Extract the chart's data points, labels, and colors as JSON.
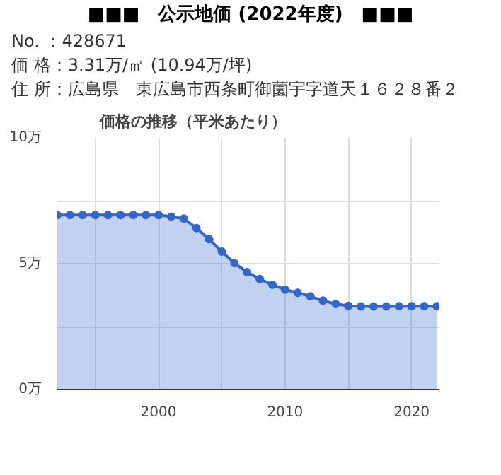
{
  "chart_data": {
    "type": "area",
    "title": "■■■　公示地価 (2022年度)　■■■",
    "subtitle": "価格の推移（平米あたり）",
    "annotations": [
      "No. ：428671",
      "価 格：3.31万/㎡ (10.94万/坪)",
      "住 所：広島県　東広島市西条町御薗宇字道天１６２８番２"
    ],
    "x": [
      1992,
      1993,
      1994,
      1995,
      1996,
      1997,
      1998,
      1999,
      2000,
      2001,
      2002,
      2003,
      2004,
      2005,
      2006,
      2007,
      2008,
      2009,
      2010,
      2011,
      2012,
      2013,
      2014,
      2015,
      2016,
      2017,
      2018,
      2019,
      2020,
      2021,
      2022
    ],
    "series": [
      {
        "color": "#3366cc",
        "values": [
          6.93,
          6.93,
          6.93,
          6.93,
          6.93,
          6.93,
          6.93,
          6.93,
          6.93,
          6.87,
          6.79,
          6.41,
          5.97,
          5.48,
          5.02,
          4.66,
          4.39,
          4.16,
          3.97,
          3.84,
          3.7,
          3.53,
          3.4,
          3.32,
          3.3,
          3.3,
          3.3,
          3.31,
          3.31,
          3.31,
          3.31
        ]
      }
    ],
    "xlim": [
      1992,
      2022.2
    ],
    "ylim": [
      0,
      10
    ],
    "xticks": [
      {
        "value": 1995,
        "label": null
      },
      2000,
      {
        "value": 2005,
        "label": null
      },
      2010,
      {
        "value": 2015,
        "label": null
      },
      2020
    ],
    "yticks": [
      {
        "value": 0,
        "label": "0万"
      },
      {
        "value": 2.5,
        "label": null
      },
      {
        "value": 5,
        "label": "5万"
      },
      {
        "value": 7.5,
        "label": null
      },
      {
        "value": 10,
        "label": "10万"
      }
    ],
    "grid": true,
    "marker": "circle",
    "line_style": "solid"
  }
}
